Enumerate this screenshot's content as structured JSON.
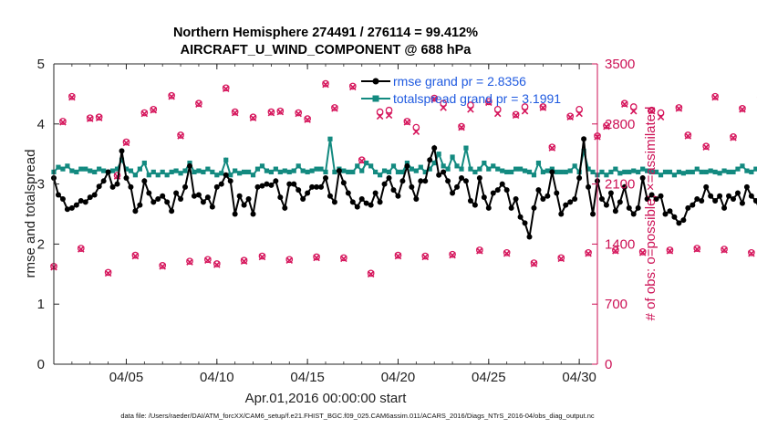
{
  "chart_data": {
    "type": "line",
    "title": "Northern Hemisphere 274491 / 276114 = 99.412%",
    "subtitle": "AIRCRAFT_U_WIND_COMPONENT @ 688 hPa",
    "xlabel": "Apr.01,2016 00:00:00 start",
    "ylabel": "rmse and totalspread",
    "ylabel_right": "# of obs: o=possible; ×=assimilated",
    "footer": "data file: /Users/raeder/DAI/ATM_forcXX/CAM6_setup/f.e21.FHIST_BGC.f09_025.CAM6assim.011/ACARS_2016/Diags_NTrS_2016-04/obs_diag_output.nc",
    "xlim": [
      0.5,
      30.5
    ],
    "ylim": [
      0,
      5
    ],
    "ylim_right": [
      0,
      3500
    ],
    "x_ticks": [
      4.5,
      9.5,
      14.5,
      19.5,
      24.5,
      29.5
    ],
    "x_tick_labels": [
      "04/05",
      "04/10",
      "04/15",
      "04/20",
      "04/25",
      "04/30"
    ],
    "y_ticks": [
      0,
      1,
      2,
      3,
      4,
      5
    ],
    "y_tick_labels": [
      "0",
      "1",
      "2",
      "3",
      "4",
      "5"
    ],
    "y_ticks_right": [
      0,
      700,
      1400,
      2100,
      2800,
      3500
    ],
    "y_tick_labels_right": [
      "0",
      "700",
      "1400",
      "2100",
      "2800",
      "3500"
    ],
    "grid": false,
    "legend_position": "top-right",
    "colors": {
      "rmse": "#000000",
      "spread": "#138a80",
      "obs": "#d6175d",
      "right_axis": "#cc1155",
      "legend_text": "#1f5ae0"
    },
    "series": [
      {
        "name": "rmse grand pr = 2.8356",
        "x0": 0.5,
        "dx": 0.25,
        "values": [
          3.1,
          2.82,
          2.75,
          2.58,
          2.6,
          2.65,
          2.72,
          2.7,
          2.78,
          2.82,
          2.96,
          3.05,
          3.2,
          2.95,
          3.0,
          3.55,
          3.1,
          2.95,
          2.55,
          2.65,
          3.05,
          2.85,
          2.7,
          2.75,
          2.8,
          2.7,
          2.55,
          2.85,
          2.75,
          2.95,
          3.3,
          2.8,
          2.82,
          2.7,
          2.78,
          2.62,
          2.95,
          3.0,
          3.15,
          3.05,
          2.5,
          2.8,
          2.65,
          2.75,
          2.5,
          2.95,
          2.97,
          3.0,
          2.98,
          3.05,
          2.78,
          2.6,
          3.0,
          3.0,
          2.9,
          2.75,
          2.85,
          2.95,
          2.95,
          2.95,
          3.1,
          2.8,
          2.7,
          3.22,
          3.02,
          2.85,
          2.7,
          2.62,
          2.75,
          2.68,
          2.65,
          2.85,
          2.7,
          3.0,
          3.1,
          2.9,
          2.8,
          3.05,
          3.3,
          2.95,
          2.75,
          3.05,
          3.05,
          3.4,
          3.6,
          3.15,
          3.2,
          3.05,
          2.85,
          2.95,
          3.1,
          3.05,
          2.72,
          2.65,
          3.1,
          2.78,
          2.6,
          2.85,
          2.9,
          3.0,
          2.9,
          2.6,
          2.75,
          2.45,
          2.35,
          2.12,
          2.6,
          2.9,
          2.75,
          2.8,
          3.2,
          2.85,
          2.5,
          2.65,
          2.7,
          2.75,
          3.1,
          3.75,
          2.95,
          2.5,
          3.05,
          2.75,
          2.65,
          2.85,
          2.55,
          2.7,
          2.95,
          2.6,
          2.5,
          2.6,
          3.1,
          2.75,
          2.82,
          2.75,
          2.8,
          2.5,
          2.55,
          2.45,
          2.35,
          2.4,
          2.6,
          2.65,
          2.75,
          2.72,
          2.95,
          2.8,
          2.72,
          2.8,
          2.6,
          2.8,
          2.75,
          2.85,
          2.68,
          2.95,
          2.8,
          2.72,
          2.55,
          2.65,
          2.55,
          2.82,
          3.0,
          2.8,
          2.72,
          2.88,
          2.85,
          2.95,
          3.05,
          3.45,
          2.7,
          2.65,
          2.55,
          2.72,
          2.72,
          2.9,
          2.95,
          2.6,
          2.72,
          3.0,
          2.85
        ]
      },
      {
        "name": "totalspread grand pr = 3.1991",
        "x0": 0.5,
        "dx": 0.25,
        "values": [
          3.2,
          3.28,
          3.25,
          3.3,
          3.22,
          3.2,
          3.25,
          3.25,
          3.22,
          3.2,
          3.25,
          3.22,
          3.2,
          3.22,
          3.25,
          3.4,
          3.25,
          3.22,
          3.15,
          3.25,
          3.35,
          3.15,
          3.2,
          3.15,
          3.2,
          3.15,
          3.2,
          3.22,
          3.18,
          3.22,
          3.35,
          3.2,
          3.22,
          3.2,
          3.25,
          3.2,
          3.15,
          3.18,
          3.4,
          3.15,
          3.22,
          3.18,
          3.2,
          3.2,
          3.15,
          3.25,
          3.3,
          3.22,
          3.2,
          3.25,
          3.2,
          3.22,
          3.2,
          3.22,
          3.3,
          3.22,
          3.2,
          3.22,
          3.25,
          3.25,
          3.2,
          3.75,
          3.2,
          3.25,
          3.22,
          3.2,
          3.2,
          3.3,
          3.22,
          3.35,
          3.3,
          3.2,
          3.15,
          3.22,
          3.2,
          3.3,
          3.2,
          3.2,
          3.35,
          3.25,
          3.22,
          3.28,
          3.2,
          3.25,
          3.35,
          3.5,
          3.3,
          3.25,
          3.45,
          3.3,
          3.25,
          3.6,
          3.25,
          3.2,
          3.25,
          3.35,
          3.25,
          3.3,
          3.25,
          3.22,
          3.2,
          3.2,
          3.25,
          3.25,
          3.22,
          3.2,
          3.15,
          3.35,
          3.2,
          3.22,
          3.25,
          3.2,
          3.2,
          3.2,
          3.22,
          3.3,
          3.2,
          3.55,
          3.25,
          3.2,
          3.15,
          3.2,
          3.15,
          3.2,
          3.25,
          3.18,
          3.2,
          3.2,
          3.22,
          3.2,
          3.25,
          3.22,
          3.2,
          3.2,
          3.15,
          3.2,
          3.2,
          3.15,
          3.2,
          3.18,
          3.2,
          3.2,
          3.25,
          3.2,
          3.2,
          3.22,
          3.2,
          3.18,
          3.22,
          3.2,
          3.2,
          3.25,
          3.3,
          3.22,
          3.2,
          3.25,
          3.2,
          3.25,
          3.22,
          3.2,
          3.2,
          3.22,
          3.2,
          3.18,
          3.22,
          3.2,
          3.18,
          3.22,
          3.3,
          3.4,
          3.2,
          3.18,
          3.2,
          3.22,
          3.2,
          3.18,
          3.2,
          3.15,
          3.2,
          3.25,
          3.2,
          3.15
        ]
      },
      {
        "name": "obs possible",
        "x0": 0.5,
        "dx": 0.5,
        "values": [
          1140,
          2830,
          3120,
          1350,
          2870,
          2880,
          1070,
          2200,
          2590,
          1270,
          2930,
          2970,
          1150,
          3130,
          2670,
          1200,
          3040,
          1220,
          1170,
          3220,
          2940,
          1210,
          2880,
          1260,
          2940,
          2950,
          1220,
          2930,
          2860,
          1250,
          3270,
          2990,
          1240,
          3240,
          2380,
          1060,
          2940,
          2960,
          1270,
          2830,
          2760,
          1260,
          3100,
          3040,
          1280,
          2770,
          3020,
          1330,
          3060,
          2970,
          1300,
          2910,
          3000,
          1180,
          3000,
          2530,
          1240,
          2890,
          2970,
          1300,
          2660,
          2780,
          1330,
          3040,
          3000,
          1310,
          2960,
          2930,
          1330,
          2990,
          2670,
          1350,
          2540,
          3120,
          1340,
          2650,
          2980,
          1300,
          3110,
          3040,
          1360,
          2840,
          3070,
          0
        ]
      },
      {
        "name": "obs assimilated",
        "x0": 0.5,
        "dx": 0.5,
        "values": [
          1130,
          2820,
          3110,
          1340,
          2860,
          2870,
          1060,
          2190,
          2580,
          1260,
          2920,
          2960,
          1140,
          3120,
          2660,
          1190,
          3030,
          1210,
          1160,
          3210,
          2930,
          1200,
          2870,
          1250,
          2930,
          2940,
          1210,
          2920,
          2850,
          1240,
          3260,
          2980,
          1230,
          3230,
          2370,
          1050,
          2890,
          2900,
          1260,
          2820,
          2710,
          1250,
          3090,
          2990,
          1270,
          2760,
          2970,
          1320,
          3050,
          2920,
          1290,
          2900,
          2950,
          1170,
          2990,
          2520,
          1230,
          2880,
          2920,
          1290,
          2650,
          2770,
          1320,
          3030,
          2950,
          1300,
          2950,
          2880,
          1320,
          2980,
          2660,
          1340,
          2530,
          3110,
          1330,
          2640,
          2970,
          1290,
          3100,
          2990,
          1350,
          2830,
          3020,
          0
        ]
      }
    ]
  }
}
